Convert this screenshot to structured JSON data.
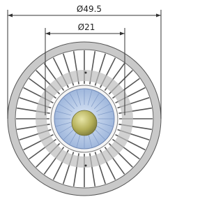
{
  "dimensions": [
    {
      "label": "Ø49.5"
    },
    {
      "label": "Ø21"
    }
  ]
}
